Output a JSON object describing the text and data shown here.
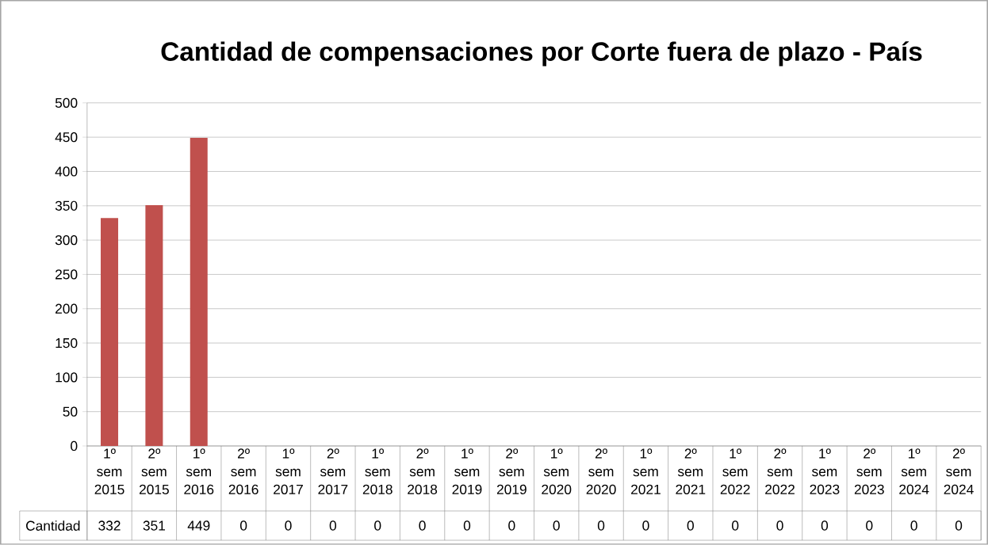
{
  "chart_data": {
    "type": "bar",
    "title": "Cantidad de compensaciones por Corte fuera de plazo - País",
    "categories": [
      "1º sem 2015",
      "2º sem 2015",
      "1º sem 2016",
      "2º sem 2016",
      "1º sem 2017",
      "2º sem 2017",
      "1º sem 2018",
      "2º sem 2018",
      "1º sem 2019",
      "2º sem 2019",
      "1º sem 2020",
      "2º sem 2020",
      "1º sem 2021",
      "2º sem 2021",
      "1º sem 2022",
      "2º sem 2022",
      "1º sem 2023",
      "2º sem 2023",
      "1º sem 2024",
      "2º sem 2024"
    ],
    "series": [
      {
        "name": "Cantidad",
        "color": "#c0504d",
        "values": [
          332,
          351,
          449,
          0,
          0,
          0,
          0,
          0,
          0,
          0,
          0,
          0,
          0,
          0,
          0,
          0,
          0,
          0,
          0,
          0
        ],
        "value_labels": [
          "332",
          "351",
          "449",
          "0",
          "0",
          "0",
          "0",
          "0",
          "0",
          "0",
          "0",
          "0",
          "0",
          "0",
          "0",
          "0",
          "0",
          "0",
          "0",
          "0"
        ]
      }
    ],
    "ylim": [
      0,
      500
    ],
    "yticks": [
      0,
      50,
      100,
      150,
      200,
      250,
      300,
      350,
      400,
      450,
      500
    ],
    "grid": "y"
  }
}
